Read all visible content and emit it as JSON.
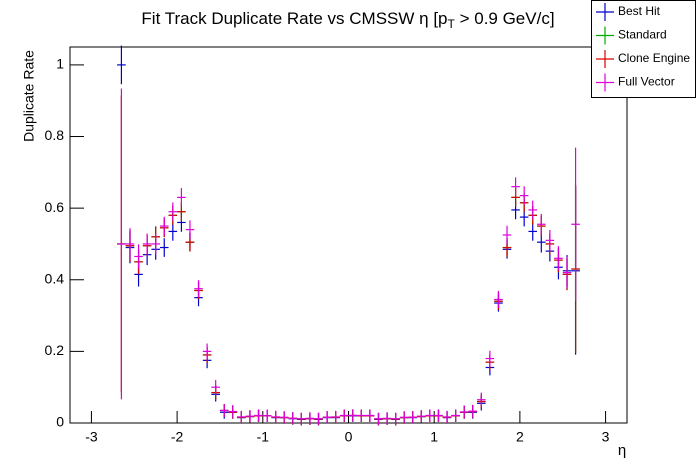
{
  "chart_data": {
    "type": "errorbar",
    "title_parts": [
      "Fit Track Duplicate Rate vs CMSSW η [p",
      "T",
      " > 0.9 GeV/c]"
    ],
    "y_label": "Duplicate Rate",
    "x_label": "η",
    "xlim": [
      -3.25,
      3.25
    ],
    "ylim": [
      0,
      1.05
    ],
    "xticks": [
      -3,
      -2,
      -1,
      0,
      1,
      2,
      3
    ],
    "yticks": [
      0,
      0.2,
      0.4,
      0.6,
      0.8,
      1
    ],
    "x": [
      -2.65,
      -2.55,
      -2.45,
      -2.35,
      -2.25,
      -2.15,
      -2.05,
      -1.95,
      -1.85,
      -1.75,
      -1.65,
      -1.55,
      -1.45,
      -1.35,
      -1.25,
      -1.15,
      -1.05,
      -0.95,
      -0.85,
      -0.75,
      -0.65,
      -0.55,
      -0.45,
      -0.35,
      -0.25,
      -0.15,
      -0.05,
      0.05,
      0.15,
      0.25,
      0.35,
      0.45,
      0.55,
      0.65,
      0.75,
      0.85,
      0.95,
      1.05,
      1.15,
      1.25,
      1.35,
      1.45,
      1.55,
      1.65,
      1.75,
      1.85,
      1.95,
      2.05,
      2.15,
      2.25,
      2.35,
      2.45,
      2.55,
      2.65
    ],
    "series": [
      {
        "name": "Best Hit",
        "color": "#0000cc",
        "values": [
          1.0,
          0.49,
          0.415,
          0.47,
          0.485,
          0.49,
          0.535,
          0.56,
          0.505,
          0.35,
          0.175,
          0.08,
          0.03,
          0.03,
          0.015,
          0.018,
          0.02,
          0.02,
          0.015,
          0.015,
          0.012,
          0.01,
          0.012,
          0.01,
          0.015,
          0.015,
          0.02,
          0.02,
          0.02,
          0.02,
          0.01,
          0.012,
          0.01,
          0.015,
          0.015,
          0.018,
          0.02,
          0.02,
          0.015,
          0.02,
          0.03,
          0.03,
          0.055,
          0.155,
          0.335,
          0.485,
          0.595,
          0.575,
          0.535,
          0.505,
          0.48,
          0.435,
          0.425,
          0.425
        ],
        "errors": [
          0.04,
          0.03,
          0.02,
          0.015,
          0.015,
          0.012,
          0.012,
          0.012,
          0.012,
          0.01,
          0.008,
          0.006,
          0.004,
          0.004,
          0.003,
          0.003,
          0.003,
          0.003,
          0.003,
          0.003,
          0.003,
          0.003,
          0.003,
          0.003,
          0.003,
          0.003,
          0.003,
          0.003,
          0.003,
          0.003,
          0.003,
          0.003,
          0.003,
          0.003,
          0.003,
          0.003,
          0.003,
          0.003,
          0.003,
          0.003,
          0.004,
          0.004,
          0.006,
          0.008,
          0.01,
          0.012,
          0.012,
          0.012,
          0.012,
          0.015,
          0.015,
          0.02,
          0.03,
          0.22
        ]
      },
      {
        "name": "Standard",
        "color": "#00aa00",
        "values": [
          0.5,
          0.495,
          0.45,
          0.495,
          0.52,
          0.545,
          0.58,
          0.59,
          0.505,
          0.37,
          0.19,
          0.085,
          0.035,
          0.03,
          0.016,
          0.018,
          0.02,
          0.02,
          0.016,
          0.015,
          0.013,
          0.011,
          0.012,
          0.011,
          0.016,
          0.016,
          0.02,
          0.021,
          0.02,
          0.02,
          0.011,
          0.012,
          0.011,
          0.015,
          0.016,
          0.018,
          0.02,
          0.02,
          0.016,
          0.02,
          0.03,
          0.032,
          0.06,
          0.17,
          0.34,
          0.49,
          0.63,
          0.615,
          0.58,
          0.55,
          0.5,
          0.455,
          0.415,
          0.43
        ],
        "errors": [
          0.4,
          0.03,
          0.02,
          0.015,
          0.015,
          0.012,
          0.012,
          0.012,
          0.012,
          0.01,
          0.008,
          0.006,
          0.004,
          0.004,
          0.003,
          0.003,
          0.003,
          0.003,
          0.003,
          0.003,
          0.003,
          0.003,
          0.003,
          0.003,
          0.003,
          0.003,
          0.003,
          0.003,
          0.003,
          0.003,
          0.003,
          0.003,
          0.003,
          0.003,
          0.003,
          0.003,
          0.003,
          0.003,
          0.003,
          0.003,
          0.004,
          0.004,
          0.006,
          0.008,
          0.01,
          0.012,
          0.012,
          0.012,
          0.012,
          0.015,
          0.015,
          0.02,
          0.03,
          0.22
        ]
      },
      {
        "name": "Clone Engine",
        "color": "#dd0000",
        "values": [
          0.5,
          0.495,
          0.45,
          0.495,
          0.52,
          0.545,
          0.58,
          0.59,
          0.505,
          0.37,
          0.19,
          0.085,
          0.035,
          0.03,
          0.016,
          0.018,
          0.02,
          0.02,
          0.016,
          0.015,
          0.013,
          0.011,
          0.012,
          0.011,
          0.016,
          0.016,
          0.02,
          0.021,
          0.02,
          0.02,
          0.011,
          0.012,
          0.011,
          0.015,
          0.016,
          0.018,
          0.02,
          0.02,
          0.016,
          0.02,
          0.03,
          0.032,
          0.06,
          0.17,
          0.34,
          0.49,
          0.63,
          0.615,
          0.58,
          0.55,
          0.5,
          0.455,
          0.415,
          0.43
        ],
        "errors": [
          0.4,
          0.03,
          0.02,
          0.015,
          0.015,
          0.012,
          0.012,
          0.012,
          0.012,
          0.01,
          0.008,
          0.006,
          0.004,
          0.004,
          0.003,
          0.003,
          0.003,
          0.003,
          0.003,
          0.003,
          0.003,
          0.003,
          0.003,
          0.003,
          0.003,
          0.003,
          0.003,
          0.003,
          0.003,
          0.003,
          0.003,
          0.003,
          0.003,
          0.003,
          0.003,
          0.003,
          0.003,
          0.003,
          0.003,
          0.003,
          0.004,
          0.004,
          0.006,
          0.008,
          0.01,
          0.012,
          0.012,
          0.012,
          0.012,
          0.015,
          0.015,
          0.02,
          0.03,
          0.22
        ]
      },
      {
        "name": "Full Vector",
        "color": "#dd00dd",
        "values": [
          0.5,
          0.5,
          0.465,
          0.5,
          0.5,
          0.55,
          0.59,
          0.63,
          0.54,
          0.375,
          0.2,
          0.1,
          0.035,
          0.032,
          0.017,
          0.019,
          0.021,
          0.02,
          0.017,
          0.016,
          0.013,
          0.012,
          0.013,
          0.012,
          0.016,
          0.017,
          0.021,
          0.021,
          0.021,
          0.021,
          0.012,
          0.013,
          0.012,
          0.016,
          0.016,
          0.019,
          0.021,
          0.021,
          0.017,
          0.021,
          0.031,
          0.033,
          0.065,
          0.18,
          0.345,
          0.525,
          0.66,
          0.635,
          0.595,
          0.555,
          0.51,
          0.46,
          0.42,
          0.555
        ],
        "errors": [
          0.42,
          0.03,
          0.02,
          0.015,
          0.015,
          0.012,
          0.012,
          0.012,
          0.012,
          0.01,
          0.008,
          0.006,
          0.004,
          0.004,
          0.003,
          0.003,
          0.003,
          0.003,
          0.003,
          0.003,
          0.003,
          0.003,
          0.003,
          0.003,
          0.003,
          0.003,
          0.003,
          0.003,
          0.003,
          0.003,
          0.003,
          0.003,
          0.003,
          0.003,
          0.003,
          0.003,
          0.003,
          0.003,
          0.003,
          0.003,
          0.004,
          0.004,
          0.006,
          0.008,
          0.01,
          0.012,
          0.012,
          0.012,
          0.012,
          0.015,
          0.015,
          0.02,
          0.03,
          0.2
        ]
      }
    ]
  }
}
